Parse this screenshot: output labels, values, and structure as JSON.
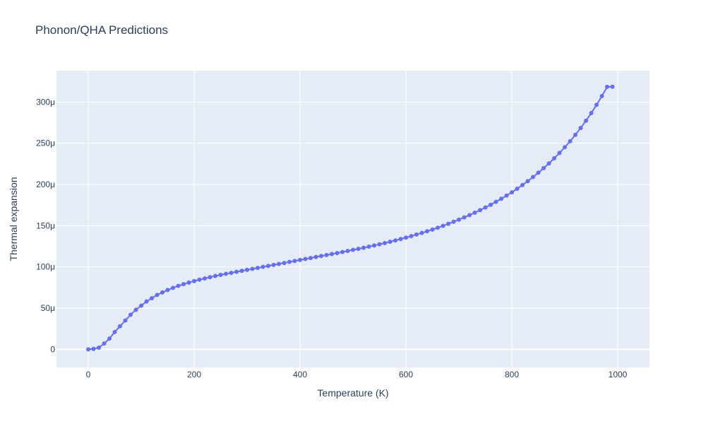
{
  "chart_data": {
    "type": "line",
    "title": "Phonon/QHA Predictions",
    "xlabel": "Temperature (K)",
    "ylabel": "Thermal expansion",
    "xlim": [
      -60,
      1060
    ],
    "ylim": [
      -2.2e-05,
      0.000338
    ],
    "xticks": [
      0,
      200,
      400,
      600,
      800,
      1000
    ],
    "xtick_labels": [
      "0",
      "200",
      "400",
      "600",
      "800",
      "1000"
    ],
    "yticks": [
      0,
      5e-05,
      0.0001,
      0.00015,
      0.0002,
      0.00025,
      0.0003
    ],
    "ytick_labels": [
      "0",
      "50μ",
      "100μ",
      "150μ",
      "200μ",
      "250μ",
      "300μ"
    ],
    "grid": true,
    "legend": "none",
    "colors": {
      "series": "#636efa",
      "plot_bg": "#e5ecf6",
      "grid": "#ffffff",
      "text": "#2a3f5f"
    },
    "series": [
      {
        "mode": "lines+markers",
        "x": [
          0,
          10,
          20,
          30,
          40,
          50,
          60,
          70,
          80,
          90,
          100,
          110,
          120,
          130,
          140,
          150,
          160,
          170,
          180,
          190,
          200,
          210,
          220,
          230,
          240,
          250,
          260,
          270,
          280,
          290,
          300,
          310,
          320,
          330,
          340,
          350,
          360,
          370,
          380,
          390,
          400,
          410,
          420,
          430,
          440,
          450,
          460,
          470,
          480,
          490,
          500,
          510,
          520,
          530,
          540,
          550,
          560,
          570,
          580,
          590,
          600,
          610,
          620,
          630,
          640,
          650,
          660,
          670,
          680,
          690,
          700,
          710,
          720,
          730,
          740,
          750,
          760,
          770,
          780,
          790,
          800,
          810,
          820,
          830,
          840,
          850,
          860,
          870,
          880,
          890,
          900,
          910,
          920,
          930,
          940,
          950,
          960,
          970,
          980,
          990
        ],
        "y": [
          0,
          5e-07,
          2e-06,
          7e-06,
          1.3e-05,
          2.1e-05,
          2.8e-05,
          3.5e-05,
          4.2e-05,
          4.8e-05,
          5.3e-05,
          5.8e-05,
          6.2e-05,
          6.6e-05,
          6.9e-05,
          7.2e-05,
          7.45e-05,
          7.7e-05,
          7.9e-05,
          8.1e-05,
          8.28e-05,
          8.45e-05,
          8.6e-05,
          8.75e-05,
          8.9e-05,
          9.03e-05,
          9.16e-05,
          9.28e-05,
          9.4e-05,
          9.52e-05,
          9.64e-05,
          9.76e-05,
          9.88e-05,
          0.0001,
          0.0001012,
          0.0001024,
          0.0001036,
          0.0001048,
          0.000106,
          0.0001072,
          0.0001084,
          0.0001096,
          0.0001108,
          0.000112,
          0.0001132,
          0.0001144,
          0.0001156,
          0.0001168,
          0.000118,
          0.0001193,
          0.0001206,
          0.0001219,
          0.0001232,
          0.0001246,
          0.000126,
          0.0001274,
          0.0001289,
          0.0001305,
          0.0001321,
          0.0001338,
          0.0001355,
          0.0001373,
          0.0001392,
          0.0001412,
          0.0001432,
          0.0001453,
          0.0001475,
          0.0001498,
          0.0001522,
          0.0001547,
          0.0001573,
          0.00016,
          0.0001628,
          0.0001657,
          0.0001688,
          0.000172,
          0.0001754,
          0.0001789,
          0.0001826,
          0.0001865,
          0.0001905,
          0.0001948,
          0.0001993,
          0.000204,
          0.000209,
          0.0002142,
          0.0002197,
          0.0002255,
          0.0002317,
          0.0002382,
          0.0002451,
          0.0002524,
          0.0002602,
          0.0002685,
          0.0002773,
          0.0002866,
          0.0002965,
          0.0003071,
          0.0003184,
          0.0003185
        ]
      }
    ]
  }
}
